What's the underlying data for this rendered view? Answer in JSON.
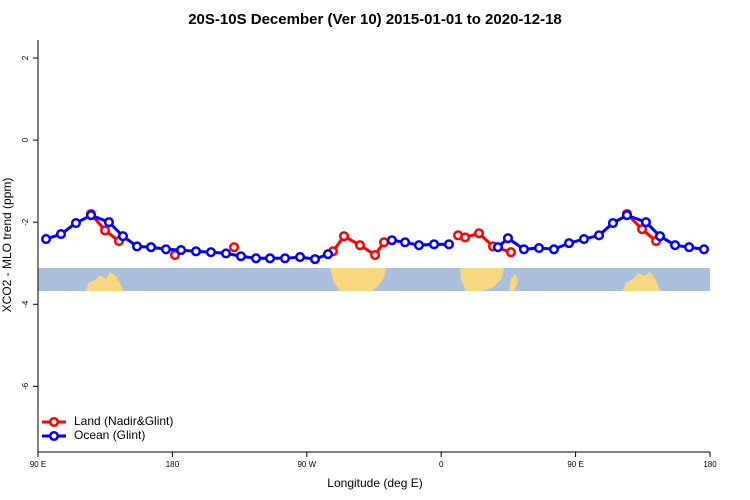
{
  "chart_data": {
    "type": "line",
    "title": "20S-10S December (Ver 10)   2015-01-01 to 2020-12-18",
    "x_label": "Longitude (deg E)",
    "y_label": "XCO2 - MLO trend (ppm)",
    "xlim": [
      90,
      540
    ],
    "xticks": [
      {
        "value": 90,
        "label": "90 E"
      },
      {
        "value": 180,
        "label": "180"
      },
      {
        "value": 270,
        "label": "90 W"
      },
      {
        "value": 360,
        "label": "0"
      },
      {
        "value": 450,
        "label": "90 E"
      },
      {
        "value": 540,
        "label": "180"
      }
    ],
    "ylim": [
      -7.6,
      2.44
    ],
    "yticks": [
      2,
      0,
      -2,
      -4,
      -6
    ],
    "legend": "bottom-left",
    "series": [
      {
        "name": "Land (Nadir&Glint)",
        "color": "#ff0000",
        "x": [
          125.5,
          134.9,
          144.2,
          160,
          181.7,
          200,
          221.3,
          260,
          287.5,
          294.9,
          305.6,
          315.7,
          321.7,
          350,
          371.3,
          376,
          385.3,
          394.7,
          406.7,
          450,
          484.4,
          494.5,
          503.9
        ],
        "values": [
          -1.8,
          -2.2,
          -2.46,
          null,
          -2.8,
          null,
          -2.61,
          null,
          -2.71,
          -2.34,
          -2.56,
          -2.8,
          -2.49,
          null,
          -2.32,
          -2.37,
          -2.27,
          -2.59,
          -2.73,
          null,
          -1.8,
          -2.17,
          -2.46
        ]
      },
      {
        "name": "Ocean (Glint)",
        "color": "#0000ff",
        "x": [
          95.4,
          105.4,
          115.4,
          125.5,
          137.5,
          146.9,
          156.3,
          165.7,
          175.7,
          185.8,
          195.8,
          205.8,
          215.9,
          225.9,
          236,
          245.4,
          255.4,
          265.5,
          275.5,
          284.2,
          305,
          327,
          335.8,
          345.1,
          355.2,
          365.2,
          380,
          398,
          404.7,
          415.4,
          425.5,
          435.5,
          445.6,
          455.6,
          465.7,
          475,
          484.4,
          497.1,
          506.5,
          516.6,
          526,
          536
        ],
        "values": [
          -2.41,
          -2.29,
          -2.02,
          -1.83,
          -2.0,
          -2.34,
          -2.59,
          -2.61,
          -2.66,
          -2.68,
          -2.71,
          -2.73,
          -2.76,
          -2.83,
          -2.88,
          -2.88,
          -2.88,
          -2.85,
          -2.9,
          -2.78,
          null,
          -2.44,
          -2.49,
          -2.56,
          -2.54,
          -2.54,
          null,
          -2.61,
          -2.39,
          -2.66,
          -2.63,
          -2.66,
          -2.51,
          -2.41,
          -2.32,
          -2.02,
          -1.83,
          -2.0,
          -2.34,
          -2.56,
          -2.61,
          -2.66
        ]
      }
    ]
  }
}
